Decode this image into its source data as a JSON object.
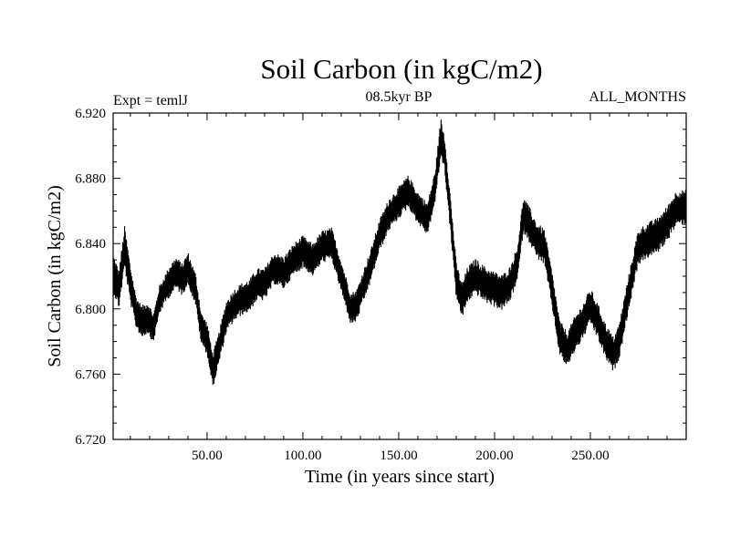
{
  "chart_data": {
    "type": "line",
    "title": "Soil Carbon (in kgC/m2)",
    "subtitle_left": "Expt = temlJ",
    "subtitle_center": "08.5kyr BP",
    "subtitle_right": "ALL_MONTHS",
    "xlabel": "Time (in years since start)",
    "ylabel": "Soil Carbon (in kgC/m2)",
    "xlim": [
      1,
      300
    ],
    "ylim": [
      6.72,
      6.92
    ],
    "xticks": [
      50,
      100,
      150,
      200,
      250
    ],
    "xtick_labels": [
      "50.00",
      "100.00",
      "150.00",
      "200.00",
      "250.00"
    ],
    "yticks": [
      6.72,
      6.76,
      6.8,
      6.84,
      6.88,
      6.92
    ],
    "ytick_labels": [
      "6.720",
      "6.760",
      "6.800",
      "6.840",
      "6.880",
      "6.920"
    ],
    "series": [
      {
        "name": "Soil Carbon",
        "color": "#000000",
        "x": [
          1,
          4,
          7,
          10,
          13,
          16,
          19,
          22,
          25,
          28,
          31,
          34,
          37,
          40,
          44,
          47,
          50,
          53,
          56,
          60,
          64,
          68,
          72,
          76,
          80,
          85,
          90,
          95,
          100,
          105,
          110,
          115,
          120,
          125,
          128,
          131,
          135,
          140,
          145,
          150,
          155,
          160,
          165,
          169,
          172,
          174,
          177,
          180,
          183,
          186,
          190,
          195,
          200,
          204,
          208,
          212,
          215,
          218,
          222,
          226,
          230,
          234,
          238,
          242,
          246,
          250,
          254,
          258,
          262,
          265,
          270,
          275,
          280,
          285,
          290,
          295,
          300
        ],
        "values": [
          6.822,
          6.812,
          6.838,
          6.815,
          6.798,
          6.792,
          6.795,
          6.788,
          6.805,
          6.812,
          6.818,
          6.822,
          6.818,
          6.825,
          6.812,
          6.788,
          6.782,
          6.762,
          6.775,
          6.795,
          6.802,
          6.806,
          6.808,
          6.815,
          6.815,
          6.825,
          6.822,
          6.83,
          6.835,
          6.83,
          6.838,
          6.84,
          6.82,
          6.8,
          6.802,
          6.812,
          6.825,
          6.845,
          6.858,
          6.865,
          6.872,
          6.862,
          6.855,
          6.875,
          6.905,
          6.895,
          6.858,
          6.818,
          6.805,
          6.815,
          6.82,
          6.815,
          6.812,
          6.81,
          6.815,
          6.828,
          6.858,
          6.852,
          6.842,
          6.838,
          6.812,
          6.782,
          6.775,
          6.785,
          6.792,
          6.802,
          6.792,
          6.78,
          6.772,
          6.78,
          6.81,
          6.838,
          6.842,
          6.845,
          6.852,
          6.862,
          6.862
        ],
        "band_halfwidth": [
          0.012,
          0.012,
          0.013,
          0.012,
          0.01,
          0.01,
          0.01,
          0.009,
          0.009,
          0.009,
          0.01,
          0.01,
          0.01,
          0.01,
          0.01,
          0.01,
          0.01,
          0.011,
          0.01,
          0.01,
          0.01,
          0.01,
          0.01,
          0.01,
          0.01,
          0.01,
          0.01,
          0.01,
          0.01,
          0.01,
          0.01,
          0.01,
          0.01,
          0.01,
          0.01,
          0.01,
          0.01,
          0.01,
          0.01,
          0.01,
          0.01,
          0.01,
          0.01,
          0.01,
          0.012,
          0.011,
          0.011,
          0.011,
          0.011,
          0.011,
          0.011,
          0.011,
          0.011,
          0.011,
          0.011,
          0.011,
          0.011,
          0.011,
          0.011,
          0.011,
          0.011,
          0.011,
          0.011,
          0.011,
          0.011,
          0.011,
          0.011,
          0.011,
          0.011,
          0.011,
          0.011,
          0.011,
          0.011,
          0.011,
          0.011,
          0.011,
          0.011
        ]
      }
    ]
  }
}
